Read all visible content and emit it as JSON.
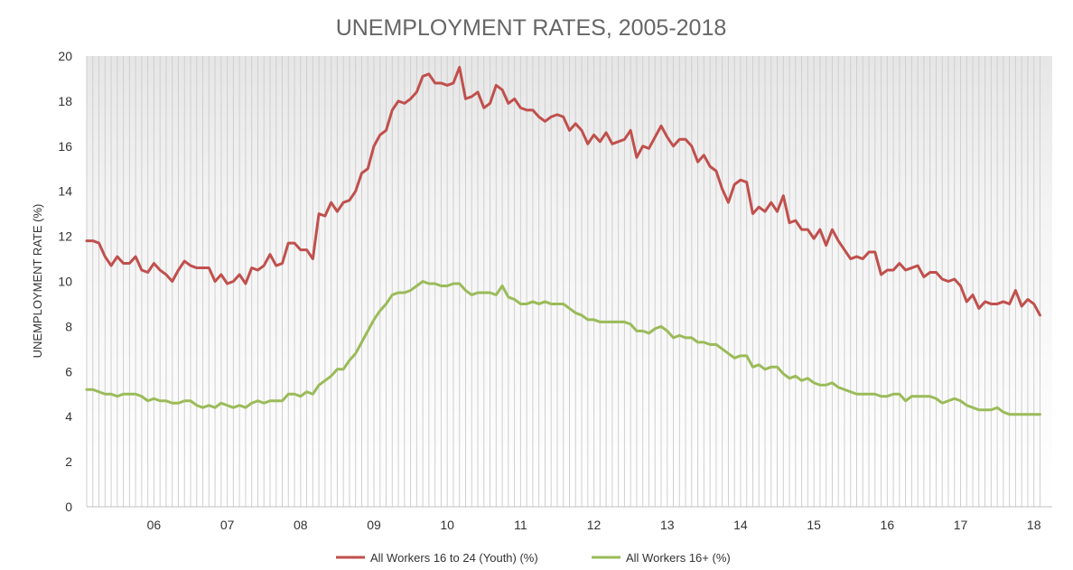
{
  "chart_data": {
    "type": "line",
    "title": "UNEMPLOYMENT RATES, 2005-2018",
    "xlabel": "",
    "ylabel": "UNEMPLOYMENT RATE (%)",
    "ylim": [
      0,
      20
    ],
    "yticks": [
      "0",
      "2",
      "4",
      "6",
      "8",
      "10",
      "12",
      "14",
      "16",
      "18",
      "20"
    ],
    "x_tick_labels": [
      "06",
      "07",
      "08",
      "09",
      "10",
      "11",
      "12",
      "13",
      "14",
      "15",
      "16",
      "17",
      "18"
    ],
    "x_tick_months": [
      11,
      23,
      35,
      47,
      59,
      71,
      83,
      95,
      107,
      119,
      131,
      143,
      155
    ],
    "x_range_months": [
      0,
      158
    ],
    "start_label": "2005-02",
    "grid": "vertical stripes",
    "legend_position": "bottom",
    "series": [
      {
        "name": "All Workers 16 to 24 (Youth) (%)",
        "color": "#c0504d",
        "values": [
          11.8,
          11.8,
          11.7,
          11.1,
          10.7,
          11.1,
          10.8,
          10.8,
          11.1,
          10.5,
          10.4,
          10.8,
          10.5,
          10.3,
          10.0,
          10.5,
          10.9,
          10.7,
          10.6,
          10.6,
          10.6,
          10.0,
          10.3,
          9.9,
          10.0,
          10.3,
          9.9,
          10.6,
          10.5,
          10.7,
          11.2,
          10.7,
          10.8,
          11.7,
          11.7,
          11.4,
          11.4,
          11.0,
          13.0,
          12.9,
          13.5,
          13.1,
          13.5,
          13.6,
          14.0,
          14.8,
          15.0,
          16.0,
          16.5,
          16.7,
          17.6,
          18.0,
          17.9,
          18.1,
          18.4,
          19.1,
          19.2,
          18.8,
          18.8,
          18.7,
          18.8,
          19.5,
          18.1,
          18.2,
          18.4,
          17.7,
          17.9,
          18.7,
          18.5,
          17.9,
          18.1,
          17.7,
          17.6,
          17.6,
          17.3,
          17.1,
          17.3,
          17.4,
          17.3,
          16.7,
          17.0,
          16.7,
          16.1,
          16.5,
          16.2,
          16.6,
          16.1,
          16.2,
          16.3,
          16.7,
          15.5,
          16.0,
          15.9,
          16.4,
          16.9,
          16.4,
          16.0,
          16.3,
          16.3,
          16.0,
          15.3,
          15.6,
          15.1,
          14.9,
          14.1,
          13.5,
          14.3,
          14.5,
          14.4,
          13.0,
          13.3,
          13.1,
          13.5,
          13.1,
          13.8,
          12.6,
          12.7,
          12.3,
          12.3,
          11.9,
          12.3,
          11.6,
          12.3,
          11.8,
          11.4,
          11.0,
          11.1,
          11.0,
          11.3,
          11.3,
          10.3,
          10.5,
          10.5,
          10.8,
          10.5,
          10.6,
          10.7,
          10.2,
          10.4,
          10.4,
          10.1,
          10.0,
          10.1,
          9.8,
          9.1,
          9.4,
          8.8,
          9.1,
          9.0,
          9.0,
          9.1,
          9.0,
          9.6,
          8.9,
          9.2,
          9.0,
          8.5
        ]
      },
      {
        "name": "All Workers 16+ (%)",
        "color": "#9bbb59",
        "values": [
          5.2,
          5.2,
          5.1,
          5.0,
          5.0,
          4.9,
          5.0,
          5.0,
          5.0,
          4.9,
          4.7,
          4.8,
          4.7,
          4.7,
          4.6,
          4.6,
          4.7,
          4.7,
          4.5,
          4.4,
          4.5,
          4.4,
          4.6,
          4.5,
          4.4,
          4.5,
          4.4,
          4.6,
          4.7,
          4.6,
          4.7,
          4.7,
          4.7,
          5.0,
          5.0,
          4.9,
          5.1,
          5.0,
          5.4,
          5.6,
          5.8,
          6.1,
          6.1,
          6.5,
          6.8,
          7.3,
          7.8,
          8.3,
          8.7,
          9.0,
          9.4,
          9.5,
          9.5,
          9.6,
          9.8,
          10.0,
          9.9,
          9.9,
          9.8,
          9.8,
          9.9,
          9.9,
          9.6,
          9.4,
          9.5,
          9.5,
          9.5,
          9.4,
          9.8,
          9.3,
          9.2,
          9.0,
          9.0,
          9.1,
          9.0,
          9.1,
          9.0,
          9.0,
          9.0,
          8.8,
          8.6,
          8.5,
          8.3,
          8.3,
          8.2,
          8.2,
          8.2,
          8.2,
          8.2,
          8.1,
          7.8,
          7.8,
          7.7,
          7.9,
          8.0,
          7.8,
          7.5,
          7.6,
          7.5,
          7.5,
          7.3,
          7.3,
          7.2,
          7.2,
          7.0,
          6.8,
          6.6,
          6.7,
          6.7,
          6.2,
          6.3,
          6.1,
          6.2,
          6.2,
          5.9,
          5.7,
          5.8,
          5.6,
          5.7,
          5.5,
          5.4,
          5.4,
          5.5,
          5.3,
          5.2,
          5.1,
          5.0,
          5.0,
          5.0,
          5.0,
          4.9,
          4.9,
          5.0,
          5.0,
          4.7,
          4.9,
          4.9,
          4.9,
          4.9,
          4.8,
          4.6,
          4.7,
          4.8,
          4.7,
          4.5,
          4.4,
          4.3,
          4.3,
          4.3,
          4.4,
          4.2,
          4.1,
          4.1,
          4.1,
          4.1,
          4.1,
          4.1
        ]
      }
    ]
  }
}
